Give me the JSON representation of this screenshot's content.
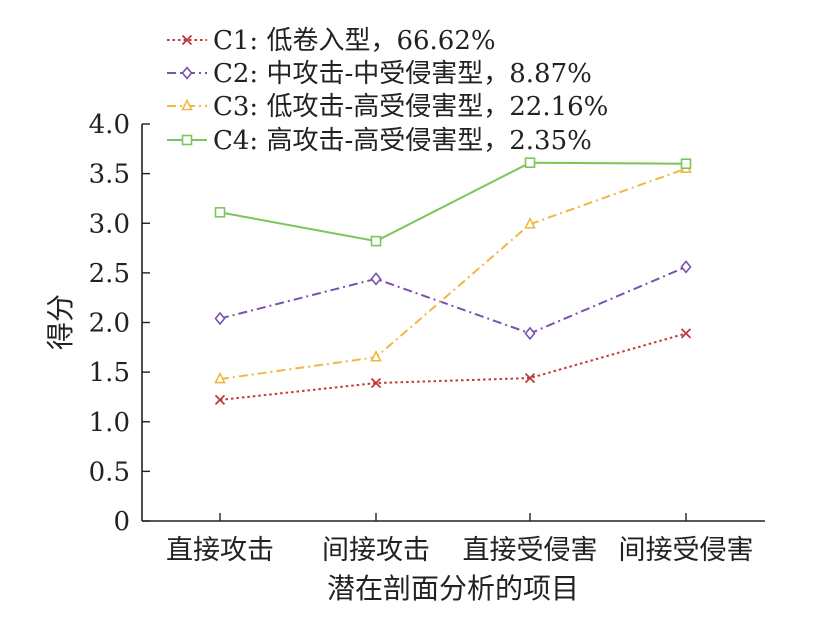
{
  "chart_data": {
    "type": "line",
    "title": "",
    "xlabel": "潜在剖面分析的项目",
    "ylabel": "得分",
    "categories": [
      "直接攻击",
      "间接攻击",
      "直接受侵害",
      "间接受侵害"
    ],
    "ylim": [
      0,
      4.0
    ],
    "yticks": [
      "0",
      "0.5",
      "1.0",
      "1.5",
      "2.0",
      "2.5",
      "3.0",
      "3.5",
      "4.0"
    ],
    "grid": false,
    "legend_position": "top",
    "series": [
      {
        "name": "C1: 低卷入型，66.62%",
        "values": [
          1.22,
          1.39,
          1.44,
          1.89
        ],
        "color": "#c0393b",
        "marker": "x",
        "dash": "dotted"
      },
      {
        "name": "C2: 中攻击-中受侵害型，8.87%",
        "values": [
          2.04,
          2.44,
          1.89,
          2.56
        ],
        "color": "#7b52b0",
        "marker": "diamond",
        "dash": "dashdot"
      },
      {
        "name": "C3: 低攻击-高受侵害型，22.16%",
        "values": [
          1.43,
          1.65,
          2.99,
          3.55
        ],
        "color": "#f0b840",
        "marker": "triangle",
        "dash": "dashdot"
      },
      {
        "name": "C4: 高攻击-高受侵害型，2.35%",
        "values": [
          3.11,
          2.82,
          3.61,
          3.6
        ],
        "color": "#7cc55c",
        "marker": "square",
        "dash": "solid"
      }
    ]
  }
}
